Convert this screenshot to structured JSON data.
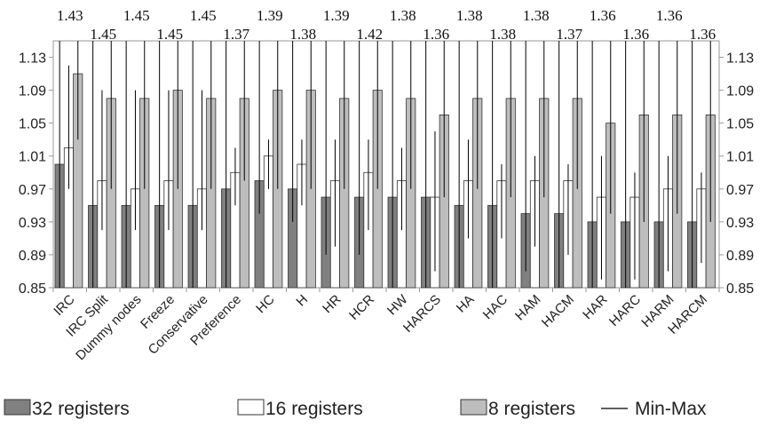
{
  "chart_data": {
    "type": "bar",
    "title": "",
    "xlabel": "",
    "ylabel": "",
    "ylim": [
      0.85,
      1.15
    ],
    "yticks": [
      "0.85",
      "0.89",
      "0.93",
      "0.97",
      "1.01",
      "1.05",
      "1.09",
      "1.13"
    ],
    "grid": false,
    "legend_position": "bottom",
    "categories": [
      "IRC",
      "IRC Split",
      "Dummy nodes",
      "Freeze",
      "Conservative",
      "Preference",
      "HC",
      "H",
      "HR",
      "HCR",
      "HW",
      "HARCS",
      "HA",
      "HAC",
      "HAM",
      "HACM",
      "HAR",
      "HARC",
      "HARM",
      "HARCM"
    ],
    "top_labels": [
      "1.43",
      "1.45",
      "1.45",
      "1.45",
      "1.45",
      "1.37",
      "1.39",
      "1.38",
      "1.39",
      "1.42",
      "1.38",
      "1.36",
      "1.38",
      "1.38",
      "1.38",
      "1.37",
      "1.36",
      "1.36",
      "1.36",
      "1.36"
    ],
    "series": [
      {
        "name": "32 registers",
        "color": "#808080",
        "values": [
          1.0,
          0.95,
          0.95,
          0.95,
          0.95,
          0.97,
          0.98,
          0.97,
          0.96,
          0.96,
          0.96,
          0.96,
          0.95,
          0.95,
          0.94,
          0.94,
          0.93,
          0.93,
          0.93,
          0.93
        ],
        "min": [
          0.85,
          0.85,
          0.85,
          0.85,
          0.85,
          0.85,
          0.94,
          0.93,
          0.89,
          0.89,
          0.85,
          0.85,
          0.85,
          0.85,
          0.87,
          0.85,
          0.85,
          0.85,
          0.85,
          0.85
        ],
        "max": [
          1.15,
          1.15,
          1.15,
          1.15,
          1.15,
          1.15,
          1.15,
          1.15,
          1.15,
          1.15,
          1.15,
          1.15,
          1.15,
          1.15,
          1.15,
          1.15,
          1.15,
          1.15,
          1.15,
          1.15
        ]
      },
      {
        "name": "16 registers",
        "color": "#ffffff",
        "values": [
          1.02,
          0.98,
          0.97,
          0.98,
          0.97,
          0.99,
          1.01,
          1.0,
          0.98,
          0.99,
          0.98,
          0.96,
          0.98,
          0.98,
          0.98,
          0.98,
          0.96,
          0.96,
          0.97,
          0.97
        ],
        "min": [
          0.97,
          0.92,
          0.92,
          0.92,
          0.92,
          0.95,
          0.97,
          0.95,
          0.9,
          0.92,
          0.92,
          0.87,
          0.91,
          0.91,
          0.9,
          0.89,
          0.86,
          0.86,
          0.87,
          0.88
        ],
        "max": [
          1.12,
          1.09,
          1.09,
          1.09,
          1.09,
          1.02,
          1.03,
          1.03,
          1.03,
          1.03,
          1.02,
          1.04,
          1.03,
          1.0,
          1.01,
          1.0,
          1.01,
          0.99,
          1.01,
          0.99
        ]
      },
      {
        "name": "8 registers",
        "color": "#bdbdbd",
        "values": [
          1.11,
          1.08,
          1.08,
          1.09,
          1.08,
          1.08,
          1.09,
          1.09,
          1.08,
          1.09,
          1.08,
          1.06,
          1.08,
          1.08,
          1.08,
          1.08,
          1.05,
          1.06,
          1.06,
          1.06
        ],
        "min": [
          1.03,
          0.97,
          0.97,
          0.97,
          0.97,
          0.98,
          0.97,
          0.97,
          0.97,
          0.97,
          0.97,
          0.96,
          0.97,
          0.96,
          0.96,
          0.97,
          0.94,
          0.93,
          0.94,
          0.93
        ],
        "max": [
          1.15,
          1.15,
          1.15,
          1.15,
          1.15,
          1.15,
          1.15,
          1.15,
          1.15,
          1.15,
          1.15,
          1.15,
          1.15,
          1.15,
          1.15,
          1.15,
          1.15,
          1.15,
          1.15,
          1.15
        ]
      }
    ],
    "legend": [
      {
        "label": "32 registers",
        "swatch": "#808080"
      },
      {
        "label": "16 registers",
        "swatch": "#ffffff"
      },
      {
        "label": "8 registers",
        "swatch": "#bdbdbd"
      },
      {
        "label": "Min-Max",
        "swatch": "line"
      }
    ]
  }
}
